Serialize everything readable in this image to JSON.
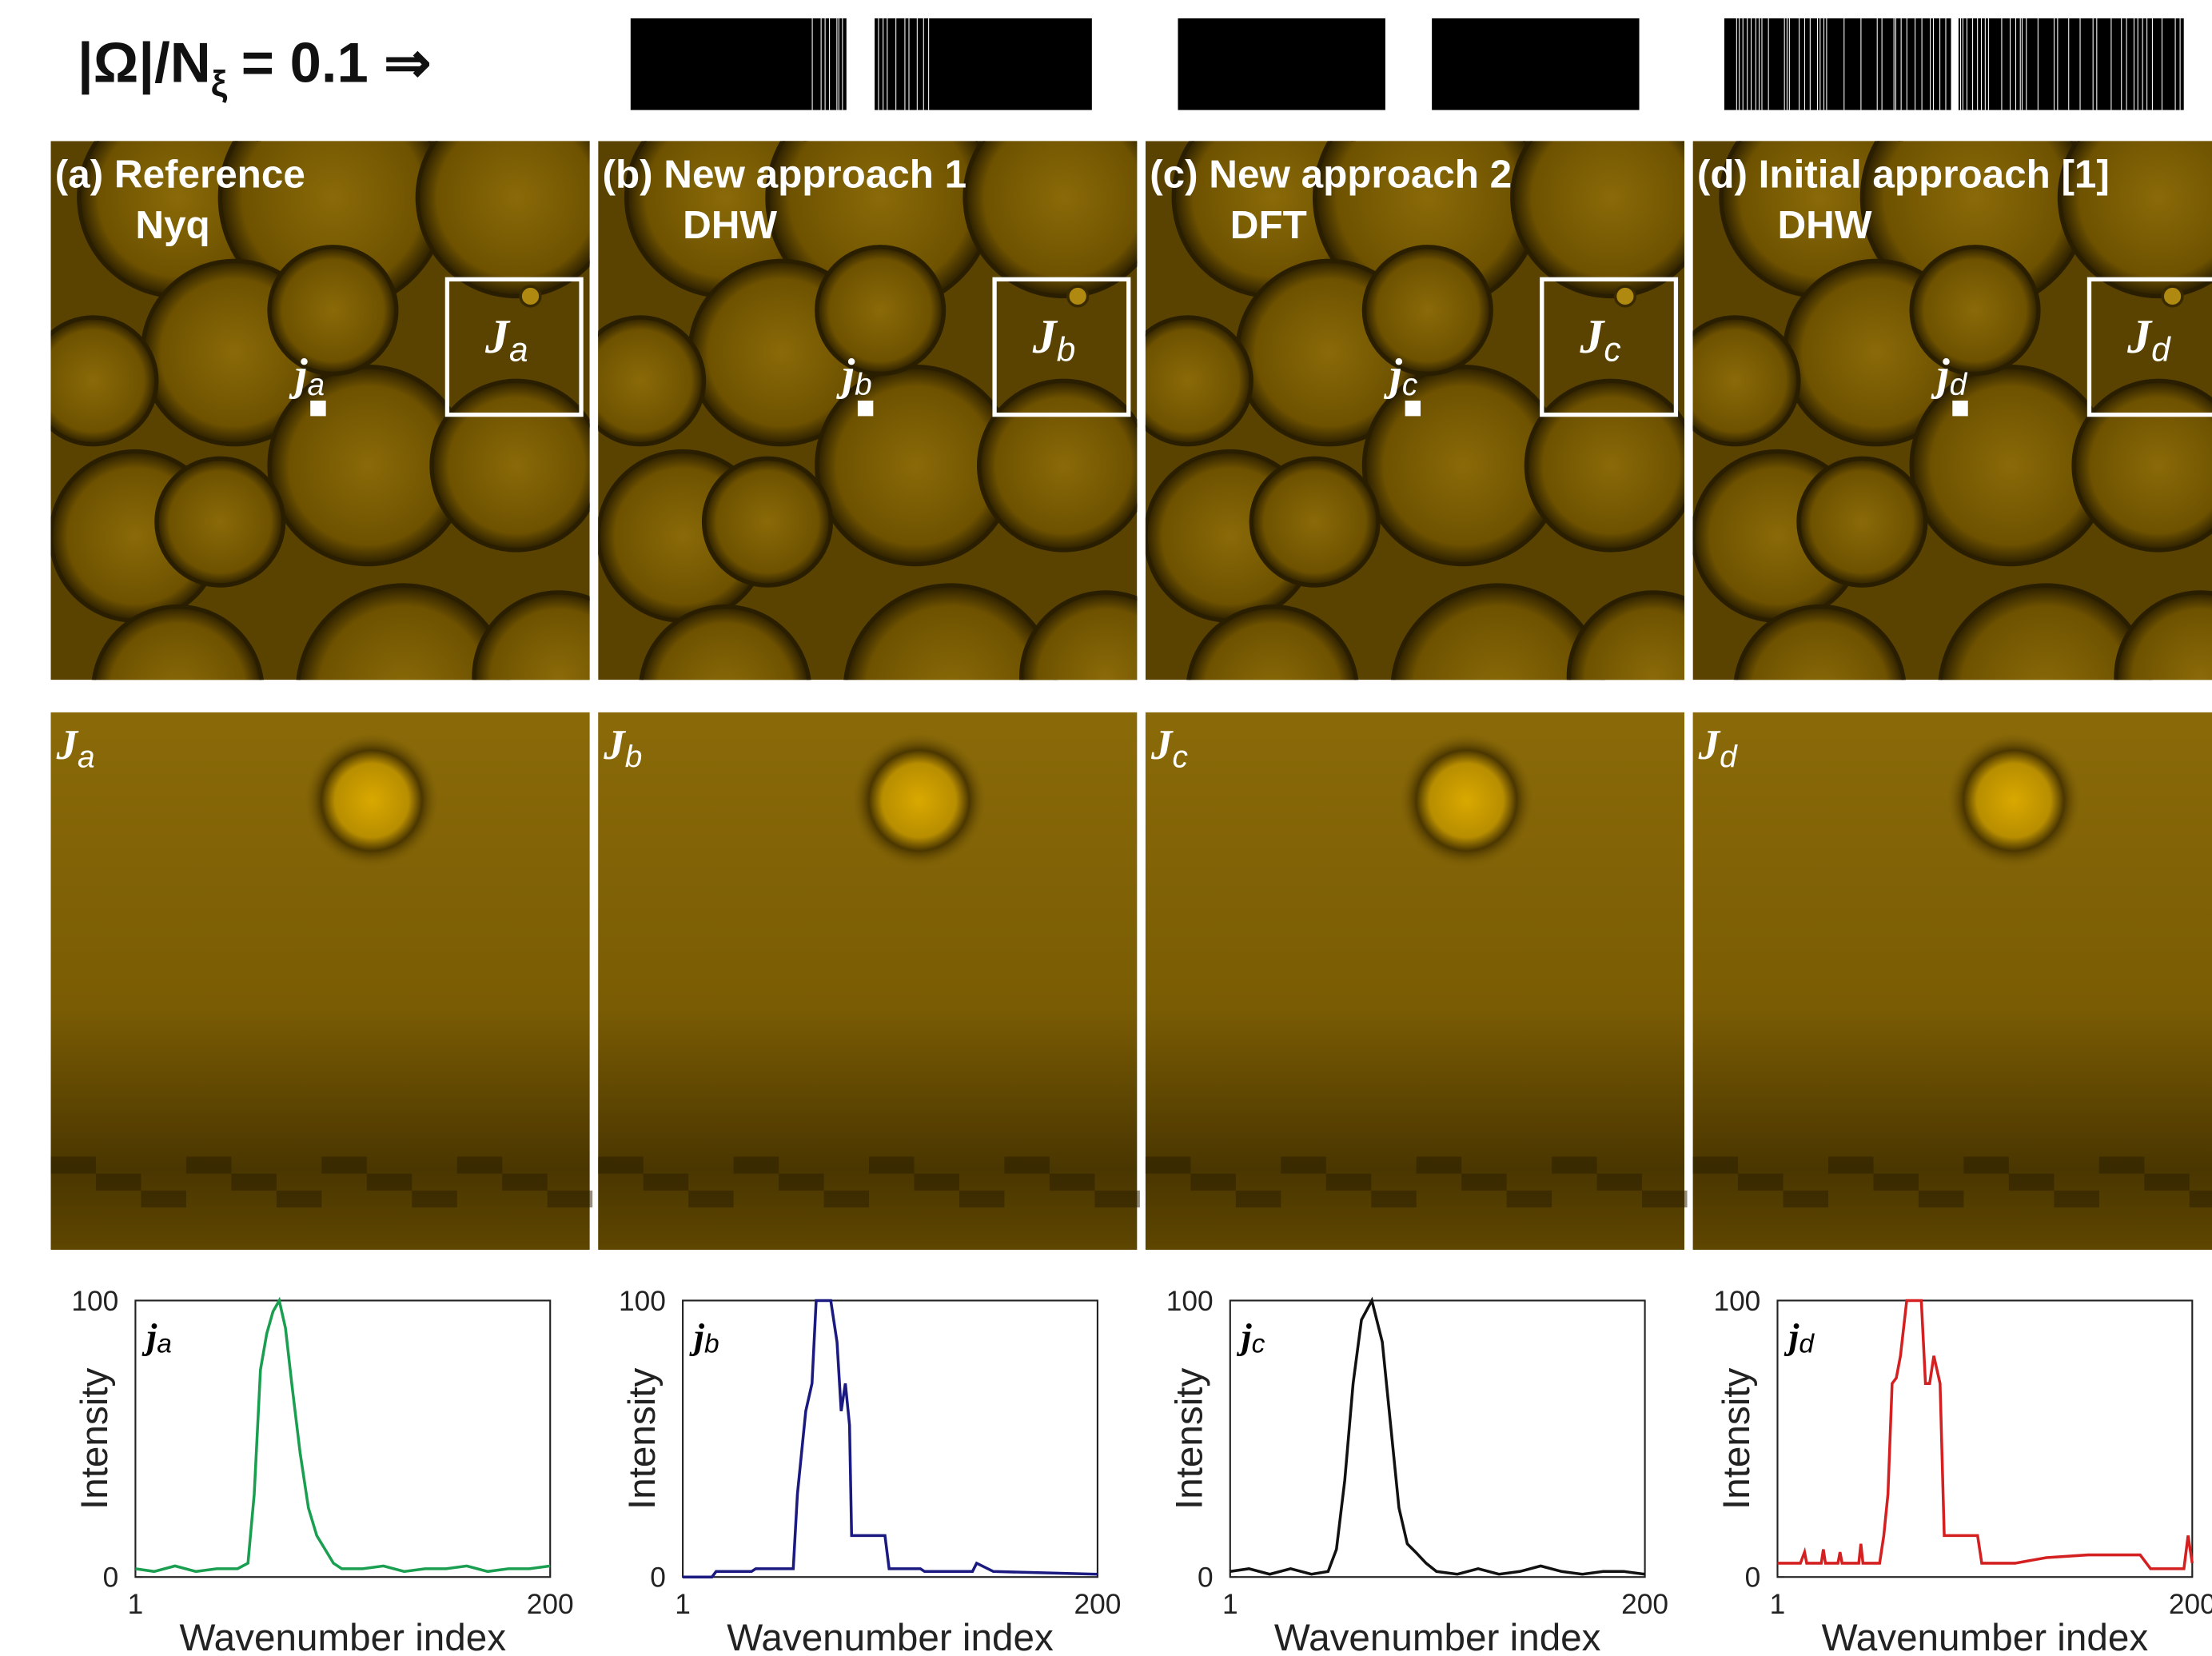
{
  "header": {
    "lhs": "|Ω|/N",
    "sub": "ξ",
    "rhs": "= 0.1 ⇒"
  },
  "figure": {
    "zoom_symbol": "J",
    "point_symbol": "j",
    "panels": [
      {
        "title": "(a) Reference",
        "method": "Nyq",
        "sub": "a"
      },
      {
        "title": "(b) New approach 1",
        "method": "DHW",
        "sub": "b"
      },
      {
        "title": "(c) New approach 2",
        "method": "DFT",
        "sub": "c"
      },
      {
        "title": "(d) Initial approach [1]",
        "method": "DHW",
        "sub": "d"
      }
    ]
  },
  "chart_data": [
    {
      "type": "line",
      "annotation": {
        "symbol": "j",
        "sub": "a"
      },
      "xlabel": "Wavenumber index",
      "ylabel": "Intensity",
      "xlim": [
        1,
        200
      ],
      "ylim": [
        0,
        100
      ],
      "xticks": [
        1,
        200
      ],
      "yticks": [
        0,
        100
      ],
      "x": [
        1,
        10,
        20,
        30,
        40,
        50,
        55,
        58,
        61,
        64,
        67,
        70,
        73,
        76,
        80,
        84,
        88,
        92,
        96,
        100,
        110,
        120,
        130,
        140,
        150,
        160,
        170,
        180,
        190,
        200
      ],
      "series": [
        {
          "color": "#1a9e50",
          "values": [
            3,
            2,
            4,
            2,
            3,
            3,
            5,
            30,
            75,
            88,
            96,
            100,
            90,
            70,
            45,
            25,
            15,
            10,
            5,
            3,
            3,
            4,
            2,
            3,
            3,
            4,
            2,
            3,
            3,
            4
          ]
        }
      ]
    },
    {
      "type": "line",
      "annotation": {
        "symbol": "j",
        "sub": "b"
      },
      "xlabel": "Wavenumber index",
      "ylabel": "Intensity",
      "xlim": [
        1,
        200
      ],
      "ylim": [
        0,
        100
      ],
      "xticks": [
        1,
        200
      ],
      "yticks": [
        0,
        100
      ],
      "x": [
        1,
        15,
        17,
        34,
        36,
        54,
        56,
        60,
        63,
        65,
        68,
        72,
        75,
        77,
        79,
        81,
        82,
        84,
        98,
        100,
        115,
        117,
        140,
        142,
        150,
        200
      ],
      "series": [
        {
          "color": "#1a1a80",
          "values": [
            0,
            0,
            2,
            2,
            3,
            3,
            30,
            60,
            70,
            100,
            100,
            100,
            85,
            60,
            70,
            55,
            15,
            15,
            15,
            3,
            3,
            2,
            2,
            5,
            2,
            1
          ]
        }
      ]
    },
    {
      "type": "line",
      "annotation": {
        "symbol": "j",
        "sub": "c"
      },
      "xlabel": "Wavenumber index",
      "ylabel": "Intensity",
      "xlim": [
        1,
        200
      ],
      "ylim": [
        0,
        100
      ],
      "xticks": [
        1,
        200
      ],
      "yticks": [
        0,
        100
      ],
      "x": [
        1,
        10,
        20,
        30,
        40,
        48,
        52,
        56,
        60,
        64,
        69,
        74,
        78,
        82,
        86,
        90,
        95,
        100,
        110,
        120,
        130,
        140,
        150,
        160,
        170,
        180,
        190,
        200
      ],
      "series": [
        {
          "color": "#111111",
          "values": [
            2,
            3,
            1,
            3,
            1,
            2,
            10,
            35,
            70,
            93,
            100,
            85,
            55,
            25,
            12,
            9,
            5,
            2,
            1,
            3,
            1,
            2,
            4,
            2,
            1,
            2,
            2,
            1
          ]
        }
      ]
    },
    {
      "type": "line",
      "annotation": {
        "symbol": "j",
        "sub": "d"
      },
      "xlabel": "Wavenumber index",
      "ylabel": "Intensity",
      "xlim": [
        1,
        200
      ],
      "ylim": [
        0,
        100
      ],
      "xticks": [
        1,
        200
      ],
      "yticks": [
        0,
        100
      ],
      "x": [
        1,
        12,
        14,
        15,
        22,
        23,
        24,
        30,
        31,
        32,
        40,
        41,
        42,
        50,
        52,
        54,
        56,
        58,
        60,
        63,
        66,
        70,
        72,
        74,
        76,
        79,
        81,
        83,
        97,
        99,
        115,
        130,
        150,
        175,
        180,
        190,
        196,
        198,
        200
      ],
      "series": [
        {
          "color": "#d42020",
          "values": [
            5,
            5,
            9,
            5,
            5,
            10,
            5,
            5,
            9,
            5,
            5,
            12,
            5,
            5,
            15,
            30,
            70,
            72,
            80,
            100,
            100,
            100,
            70,
            70,
            80,
            70,
            15,
            15,
            15,
            5,
            5,
            7,
            8,
            8,
            3,
            3,
            3,
            15,
            5
          ]
        }
      ]
    }
  ]
}
